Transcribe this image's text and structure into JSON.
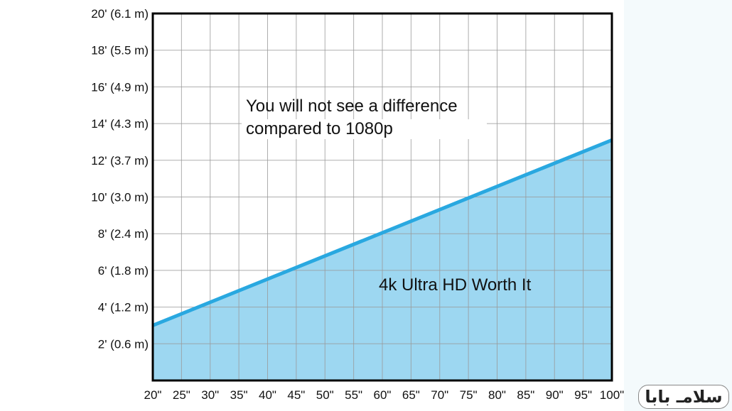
{
  "chart_data": {
    "type": "area",
    "title": "",
    "xlabel": "",
    "ylabel": "",
    "x_ticks": [
      "20\"",
      "25\"",
      "30\"",
      "35\"",
      "40\"",
      "45\"",
      "50\"",
      "55\"",
      "60\"",
      "65\"",
      "70\"",
      "75\"",
      "80\"",
      "85\"",
      "90\"",
      "95\"",
      "100\""
    ],
    "y_ticks": [
      "2' (0.6 m)",
      "4' (1.2 m)",
      "6' (1.8 m)",
      "8' (2.4 m)",
      "10' (3.0 m)",
      "12' (3.7 m)",
      "14' (4.3 m)",
      "16' (4.9 m)",
      "18' (5.5 m)",
      "20' (6.1 m)"
    ],
    "xlim": [
      20,
      100
    ],
    "ylim": [
      0,
      20
    ],
    "grid": true,
    "series": [
      {
        "x": [
          20,
          100
        ],
        "y": [
          3.0,
          13.1
        ],
        "line_color": "#29a8e0",
        "fill_color": "#9dd7f1"
      }
    ],
    "annotations": {
      "above": [
        "You will not see a difference",
        "compared to 1080p"
      ],
      "below": "4k Ultra HD Worth It"
    }
  },
  "watermark": "سلامـ بابا"
}
